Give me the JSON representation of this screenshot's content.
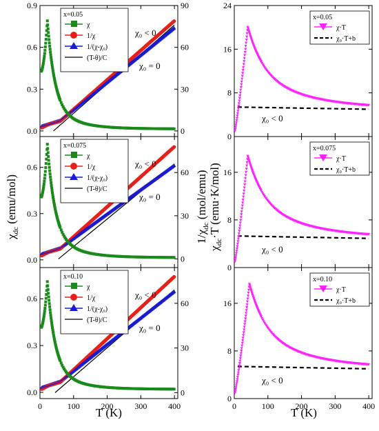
{
  "figure": {
    "xlabel": "T  (K)",
    "left_ylabel": "χ",
    "left_ylabel_sub": "dc",
    "left_ylabel_unit": "  (emu/mol)",
    "mid_ylabel_pre": "1/χ",
    "mid_ylabel_sub": "dc",
    "mid_ylabel_unit": "  (mol/emu)",
    "right_ylabel": "χ",
    "right_ylabel_sub": "dc",
    "right_ylabel_unit": "·T  (emu·K/mol)"
  },
  "colors": {
    "chi": "#1a8a1a",
    "inv_chi": "#e8201a",
    "inv_chi_corr": "#1a1ad0",
    "fit": "#000000",
    "chiT": "#ff22ff",
    "chiT_fit": "#000000"
  },
  "chart_data": [
    {
      "type": "scatter",
      "panel": "left-top",
      "x_ticks": [
        "0",
        "100",
        "200",
        "300",
        "400"
      ],
      "show_x_tick_labels": false,
      "xlim": [
        0,
        410
      ],
      "ylim": [
        -0.04,
        0.9
      ],
      "y_ticks": [
        "0.0",
        "0.3",
        "0.6",
        "0.9"
      ],
      "y_ticks_values": [
        0.0,
        0.3,
        0.6,
        0.9
      ],
      "y2lim": [
        -4,
        90
      ],
      "y2_ticks": [
        "0",
        "30",
        "60",
        "90"
      ],
      "y2_ticks_values": [
        0,
        30,
        60,
        90
      ],
      "legend": {
        "composition": "x=0.05",
        "entries": [
          "χ",
          "1/χ",
          "1/(χ-χ₀)",
          "(T-θ)/C"
        ]
      },
      "annotations": [
        "χ₀ < 0",
        "χ₀ = 0"
      ],
      "chi_peak": {
        "T": 22,
        "chi": 0.79,
        "chi_low_T": 0.42,
        "chi_high_T": 0.015
      },
      "inv_chi_end": 79,
      "inv_corr_end": 74,
      "theta": 40,
      "fit_end": 76
    },
    {
      "type": "scatter",
      "panel": "left-middle",
      "show_x_tick_labels": false,
      "xlim": [
        0,
        410
      ],
      "ylim": [
        -0.05,
        0.8
      ],
      "y_ticks": [
        "0.0",
        "0.3",
        "0.6"
      ],
      "y_ticks_values": [
        0.0,
        0.3,
        0.6
      ],
      "y2lim": [
        -6,
        85
      ],
      "y2_ticks": [
        "0",
        "30",
        "60"
      ],
      "y2_ticks_values": [
        0,
        30,
        60
      ],
      "legend": {
        "composition": "x=0.075",
        "entries": [
          "χ",
          "1/χ",
          "1/(χ-χ₀)",
          "(T-θ)/C"
        ]
      },
      "annotations": [
        "χ₀ < 0",
        "χ₀ = 0"
      ],
      "chi_peak": {
        "T": 22,
        "chi": 0.75,
        "chi_low_T": 0.4,
        "chi_high_T": 0.015
      },
      "inv_chi_end": 78,
      "inv_corr_end": 65,
      "theta": 55,
      "fit_end": 66
    },
    {
      "type": "scatter",
      "panel": "left-bottom",
      "show_x_tick_labels": true,
      "x_ticks": [
        "0",
        "100",
        "200",
        "300",
        "400"
      ],
      "x_ticks_values": [
        0,
        100,
        200,
        300,
        400
      ],
      "xlim": [
        0,
        410
      ],
      "ylim": [
        -0.04,
        0.8
      ],
      "y_ticks": [
        "0.0",
        "0.3",
        "0.6"
      ],
      "y_ticks_values": [
        0.0,
        0.3,
        0.6
      ],
      "y2lim": [
        -4,
        84
      ],
      "y2_ticks": [
        "0",
        "30",
        "60"
      ],
      "y2_ticks_values": [
        0,
        30,
        60
      ],
      "legend": {
        "composition": "x=0.10",
        "entries": [
          "χ",
          "1/χ",
          "1/(χ-χ₀)",
          "(T-θ)/C"
        ]
      },
      "annotations": [
        "χ₀ < 0",
        "χ₀ = 0"
      ],
      "chi_peak": {
        "T": 22,
        "chi": 0.71,
        "chi_low_T": 0.41,
        "chi_high_T": 0.02
      },
      "inv_chi_end": 78,
      "inv_corr_end": 68,
      "theta": 45,
      "fit_end": 69
    },
    {
      "type": "scatter",
      "panel": "right-top",
      "show_x_tick_labels": false,
      "xlim": [
        0,
        410
      ],
      "ylim": [
        0,
        24
      ],
      "y_ticks": [
        "0",
        "8",
        "16",
        "24"
      ],
      "y_ticks_values": [
        0,
        8,
        16,
        24
      ],
      "legend": {
        "composition": "x=0.05",
        "entries": [
          "χ·T",
          "χ₀·T+b"
        ]
      },
      "annotation": "χ₀ < 0",
      "peak": {
        "T": 40,
        "value": 20.0
      },
      "end_value": 5.0,
      "fit_start": 5.4
    },
    {
      "type": "scatter",
      "panel": "right-middle",
      "show_x_tick_labels": false,
      "xlim": [
        0,
        410
      ],
      "ylim": [
        0,
        22
      ],
      "y_ticks": [
        "0",
        "8",
        "16"
      ],
      "y_ticks_values": [
        0,
        8,
        16
      ],
      "legend": {
        "composition": "x=0.075",
        "entries": [
          "χ·T",
          "χ₀·T+b"
        ]
      },
      "annotation": "χ₀ < 0",
      "peak": {
        "T": 40,
        "value": 18.7
      },
      "end_value": 4.9,
      "fit_start": 5.3
    },
    {
      "type": "scatter",
      "panel": "right-bottom",
      "show_x_tick_labels": true,
      "x_ticks": [
        "0",
        "100",
        "200",
        "300",
        "400"
      ],
      "x_ticks_values": [
        0,
        100,
        200,
        300,
        400
      ],
      "xlim": [
        0,
        410
      ],
      "ylim": [
        0,
        22
      ],
      "y_ticks": [
        "0",
        "8",
        "16"
      ],
      "y_ticks_values": [
        0,
        8,
        16
      ],
      "legend": {
        "composition": "x=0.10",
        "entries": [
          "χ·T",
          "χ₀·T+b"
        ]
      },
      "annotation": "χ₀ < 0",
      "peak": {
        "T": 45,
        "value": 19.2
      },
      "end_value": 5.0,
      "fit_start": 5.4
    }
  ]
}
